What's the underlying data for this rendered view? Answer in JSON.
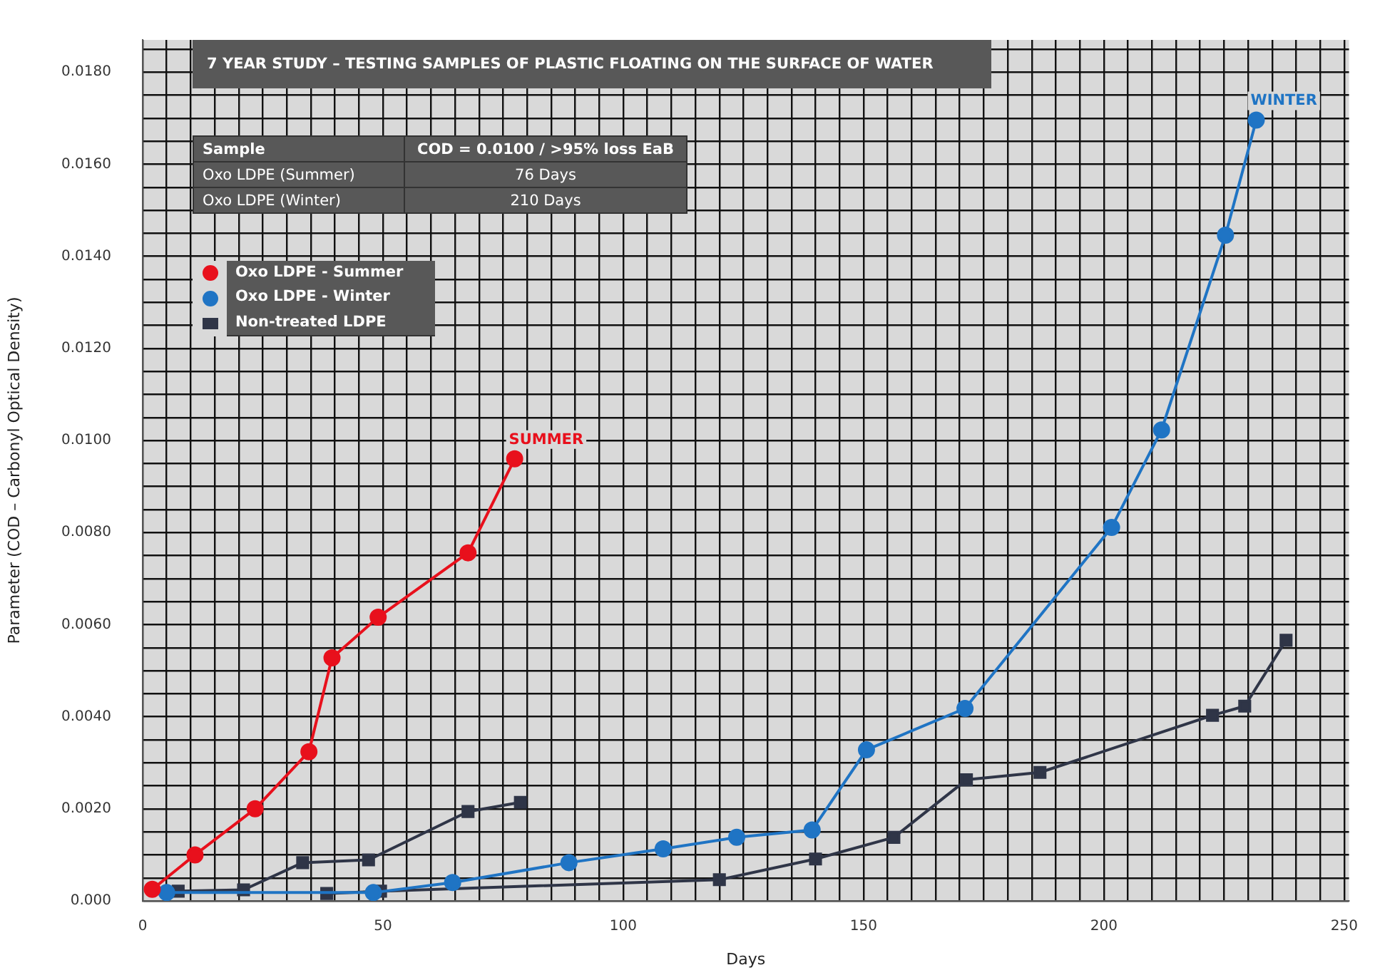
{
  "chart_data": {
    "type": "line",
    "title": "7 YEAR STUDY – TESTING SAMPLES OF PLASTIC FLOATING ON THE SURFACE OF WATER",
    "xlabel": "Days",
    "ylabel": "Parameter (COD – Carbonyl Optical Density)",
    "series": [
      {
        "name": "Oxo LDPE - Summer",
        "color": "#e8101c",
        "marker": "circle",
        "x": [
          2,
          10.9,
          23.4,
          34.6,
          39.4,
          49,
          67.7,
          77.4
        ],
        "values": [
          0.00025,
          0.001,
          0.002,
          0.00324,
          0.00528,
          0.00616,
          0.00756,
          0.0096
        ]
      },
      {
        "name": "Oxo LDPE - Winter",
        "color": "#1f74c4",
        "marker": "circle",
        "x": [
          5,
          48,
          64.5,
          88.7,
          108.3,
          123.6,
          139.3,
          150.6,
          171.1,
          201.6,
          212,
          225.3,
          231.7
        ],
        "values": [
          0.00018,
          0.00018,
          0.0004,
          0.00083,
          0.00113,
          0.00138,
          0.00154,
          0.00328,
          0.00418,
          0.00811,
          0.01023,
          0.01446,
          0.01696
        ]
      },
      {
        "name": "Non-treated LDPE",
        "color": "#2f3547",
        "marker": "square",
        "x": [
          7.4,
          21,
          33.3,
          47,
          67.7,
          78.6
        ],
        "values": [
          0.00021,
          0.00024,
          0.00083,
          0.00089,
          0.00194,
          0.00214
        ]
      },
      {
        "color": "#2f3547",
        "marker": "square",
        "x": [
          38.3,
          49.5,
          120,
          140,
          156.3,
          171.4,
          186.7,
          222.6,
          229.3,
          237.9
        ],
        "values": [
          0.00016,
          0.00021,
          0.00046,
          0.00091,
          0.00138,
          0.00263,
          0.00279,
          0.00403,
          0.00423,
          0.00566
        ]
      }
    ],
    "xlim": [
      0,
      251
    ],
    "xticks": [
      0,
      {
        "value": 5,
        "label": null
      },
      {
        "value": 10,
        "label": null
      },
      {
        "value": 15,
        "label": null
      },
      {
        "value": 20,
        "label": null
      },
      {
        "value": 25,
        "label": null
      },
      {
        "value": 30,
        "label": null
      },
      {
        "value": 35,
        "label": null
      },
      {
        "value": 40,
        "label": null
      },
      {
        "value": 45,
        "label": null
      },
      50,
      {
        "value": 55,
        "label": null
      },
      {
        "value": 60,
        "label": null
      },
      {
        "value": 65,
        "label": null
      },
      {
        "value": 70,
        "label": null
      },
      {
        "value": 75,
        "label": null
      },
      {
        "value": 80,
        "label": null
      },
      {
        "value": 85,
        "label": null
      },
      {
        "value": 90,
        "label": null
      },
      {
        "value": 95,
        "label": null
      },
      100,
      {
        "value": 105,
        "label": null
      },
      {
        "value": 110,
        "label": null
      },
      {
        "value": 115,
        "label": null
      },
      {
        "value": 120,
        "label": null
      },
      {
        "value": 125,
        "label": null
      },
      {
        "value": 130,
        "label": null
      },
      {
        "value": 135,
        "label": null
      },
      {
        "value": 140,
        "label": null
      },
      {
        "value": 145,
        "label": null
      },
      150,
      {
        "value": 155,
        "label": null
      },
      {
        "value": 160,
        "label": null
      },
      {
        "value": 165,
        "label": null
      },
      {
        "value": 170,
        "label": null
      },
      {
        "value": 175,
        "label": null
      },
      {
        "value": 180,
        "label": null
      },
      {
        "value": 185,
        "label": null
      },
      {
        "value": 190,
        "label": null
      },
      {
        "value": 195,
        "label": null
      },
      200,
      {
        "value": 205,
        "label": null
      },
      {
        "value": 210,
        "label": null
      },
      {
        "value": 215,
        "label": null
      },
      {
        "value": 220,
        "label": null
      },
      {
        "value": 225,
        "label": null
      },
      {
        "value": 230,
        "label": null
      },
      {
        "value": 235,
        "label": null
      },
      {
        "value": 240,
        "label": null
      },
      {
        "value": 245,
        "label": null
      },
      250
    ],
    "ylim": [
      0,
      0.0187
    ],
    "yticks": [
      {
        "value": 0,
        "label": "0.000"
      },
      {
        "value": 0.0005,
        "label": null
      },
      {
        "value": 0.001,
        "label": null
      },
      {
        "value": 0.0015,
        "label": null
      },
      {
        "value": 0.002,
        "label": "0.0020"
      },
      {
        "value": 0.0025,
        "label": null
      },
      {
        "value": 0.003,
        "label": null
      },
      {
        "value": 0.0035,
        "label": null
      },
      {
        "value": 0.004,
        "label": "0.0040"
      },
      {
        "value": 0.0045,
        "label": null
      },
      {
        "value": 0.005,
        "label": null
      },
      {
        "value": 0.0055,
        "label": null
      },
      {
        "value": 0.006,
        "label": "0.0060"
      },
      {
        "value": 0.0065,
        "label": null
      },
      {
        "value": 0.007,
        "label": null
      },
      {
        "value": 0.0075,
        "label": null
      },
      {
        "value": 0.008,
        "label": "0.0080"
      },
      {
        "value": 0.0085,
        "label": null
      },
      {
        "value": 0.009,
        "label": null
      },
      {
        "value": 0.0095,
        "label": null
      },
      {
        "value": 0.01,
        "label": "0.0100"
      },
      {
        "value": 0.0105,
        "label": null
      },
      {
        "value": 0.011,
        "label": null
      },
      {
        "value": 0.0115,
        "label": null
      },
      {
        "value": 0.012,
        "label": "0.0120"
      },
      {
        "value": 0.0125,
        "label": null
      },
      {
        "value": 0.013,
        "label": null
      },
      {
        "value": 0.0135,
        "label": null
      },
      {
        "value": 0.014,
        "label": "0.0140"
      },
      {
        "value": 0.0145,
        "label": null
      },
      {
        "value": 0.015,
        "label": null
      },
      {
        "value": 0.0155,
        "label": null
      },
      {
        "value": 0.016,
        "label": "0.0160"
      },
      {
        "value": 0.0165,
        "label": null
      },
      {
        "value": 0.017,
        "label": null
      },
      {
        "value": 0.0175,
        "label": null
      },
      {
        "value": 0.018,
        "label": "0.0180"
      },
      {
        "value": 0.0185,
        "label": null
      }
    ],
    "grid": true,
    "legend": "top left",
    "line_style": "solid",
    "annotations": [
      "Sample",
      "COD = 0.0100 / >95% loss EaB",
      "Oxo LDPE (Summer)",
      "76 Days",
      "Oxo LDPE (Winter)",
      "210 Days",
      {
        "text": "SUMMER",
        "x": 77.4,
        "y": 0.0096
      },
      {
        "text": "WINTER",
        "x": 231.7,
        "y": 0.01696
      }
    ]
  }
}
